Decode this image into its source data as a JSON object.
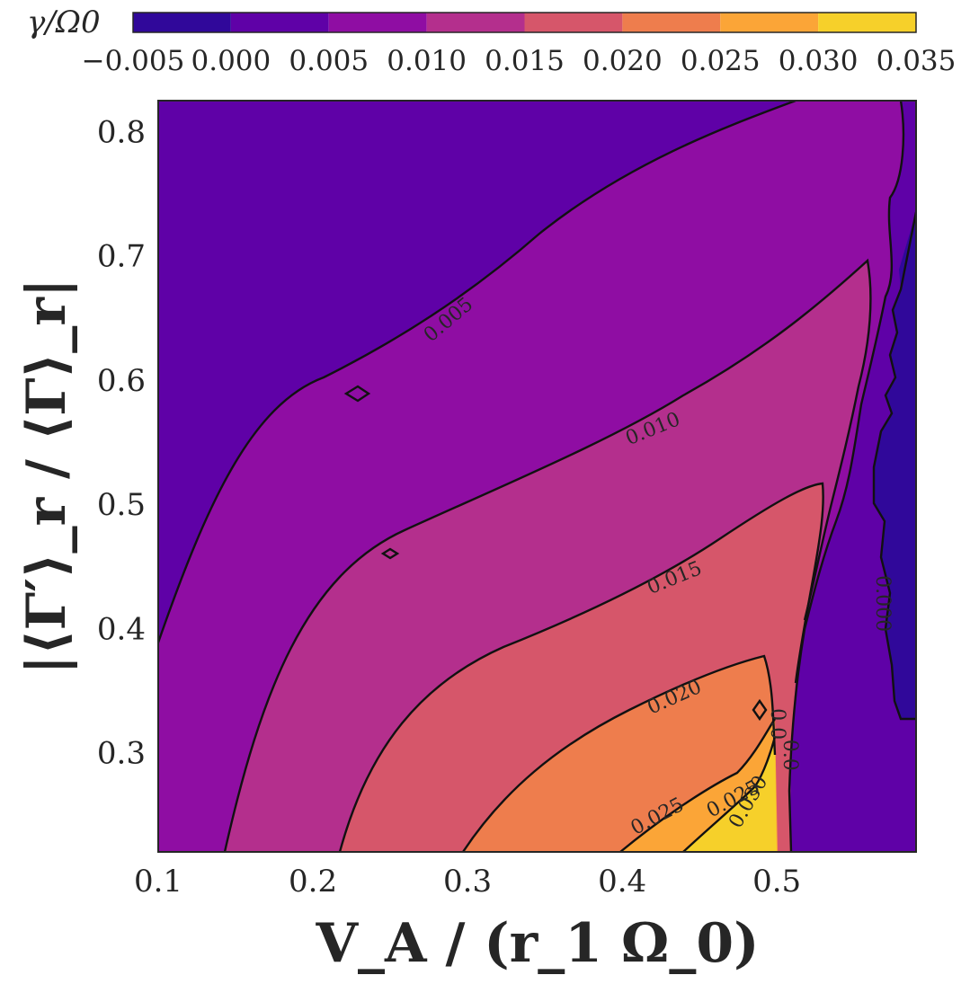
{
  "chart_data": {
    "type": "contour",
    "title": "",
    "xlabel": "V_A / (r_1 Ω_0)",
    "ylabel": "|⟨Γ′⟩_r / ⟨Γ⟩_r|",
    "xlim": [
      0.1,
      0.59
    ],
    "ylim": [
      0.22,
      0.825
    ],
    "x_ticks": [
      0.1,
      0.2,
      0.3,
      0.4,
      0.5
    ],
    "x_tick_labels": [
      "0.1",
      "0.2",
      "0.3",
      "0.4",
      "0.5"
    ],
    "y_ticks": [
      0.3,
      0.4,
      0.5,
      0.6,
      0.7,
      0.8
    ],
    "y_tick_labels": [
      "0.3",
      "0.4",
      "0.5",
      "0.6",
      "0.7",
      "0.8"
    ],
    "colorbar": {
      "label": "γ/Ω0",
      "location": "top",
      "levels": [
        -0.005,
        0.0,
        0.005,
        0.01,
        0.015,
        0.02,
        0.025,
        0.03,
        0.035
      ],
      "tick_labels": [
        "−0.005",
        "0.000",
        "0.005",
        "0.010",
        "0.015",
        "0.020",
        "0.025",
        "0.030",
        "0.035"
      ],
      "colors": [
        "#30089a",
        "#5f01a7",
        "#8f0da3",
        "#b42f8d",
        "#d6566a",
        "#ee7d4d",
        "#fba537",
        "#f6d02a"
      ],
      "colormap": "plasma"
    },
    "contour_labels": [
      {
        "text": "0.005",
        "x": 0.288,
        "y": 0.648
      },
      {
        "text": "0.010",
        "x": 0.42,
        "y": 0.56
      },
      {
        "text": "0.015",
        "x": 0.434,
        "y": 0.44
      },
      {
        "text": "0.020",
        "x": 0.434,
        "y": 0.344
      },
      {
        "text": "0.025",
        "x": 0.423,
        "y": 0.248
      },
      {
        "text": "0.025",
        "x": 0.472,
        "y": 0.262
      },
      {
        "text": "0.030",
        "x": 0.482,
        "y": 0.26
      },
      {
        "text": "0.0",
        "x": 0.5,
        "y": 0.323
      },
      {
        "text": "0.0",
        "x": 0.508,
        "y": 0.298
      },
      {
        "text": "0.000",
        "x": 0.568,
        "y": 0.42
      }
    ],
    "regions": [
      {
        "level": "-0.005 to 0.000",
        "color": "#30089a",
        "x": [
          0.55,
          0.59
        ],
        "y_range": [
          0.33,
          0.73
        ]
      },
      {
        "level": "0.000 to 0.005",
        "color": "#5f01a7",
        "note": "upper-left region and right strip"
      },
      {
        "level": "0.005 to 0.010",
        "color": "#8f0da3"
      },
      {
        "level": "0.010 to 0.015",
        "color": "#b42f8d"
      },
      {
        "level": "0.015 to 0.020",
        "color": "#d6566a"
      },
      {
        "level": "0.020 to 0.025",
        "color": "#ee7d4d"
      },
      {
        "level": "0.025 to 0.030",
        "color": "#fba537"
      },
      {
        "level": "0.030 to 0.035",
        "color": "#f6d02a"
      }
    ],
    "grid": false
  }
}
